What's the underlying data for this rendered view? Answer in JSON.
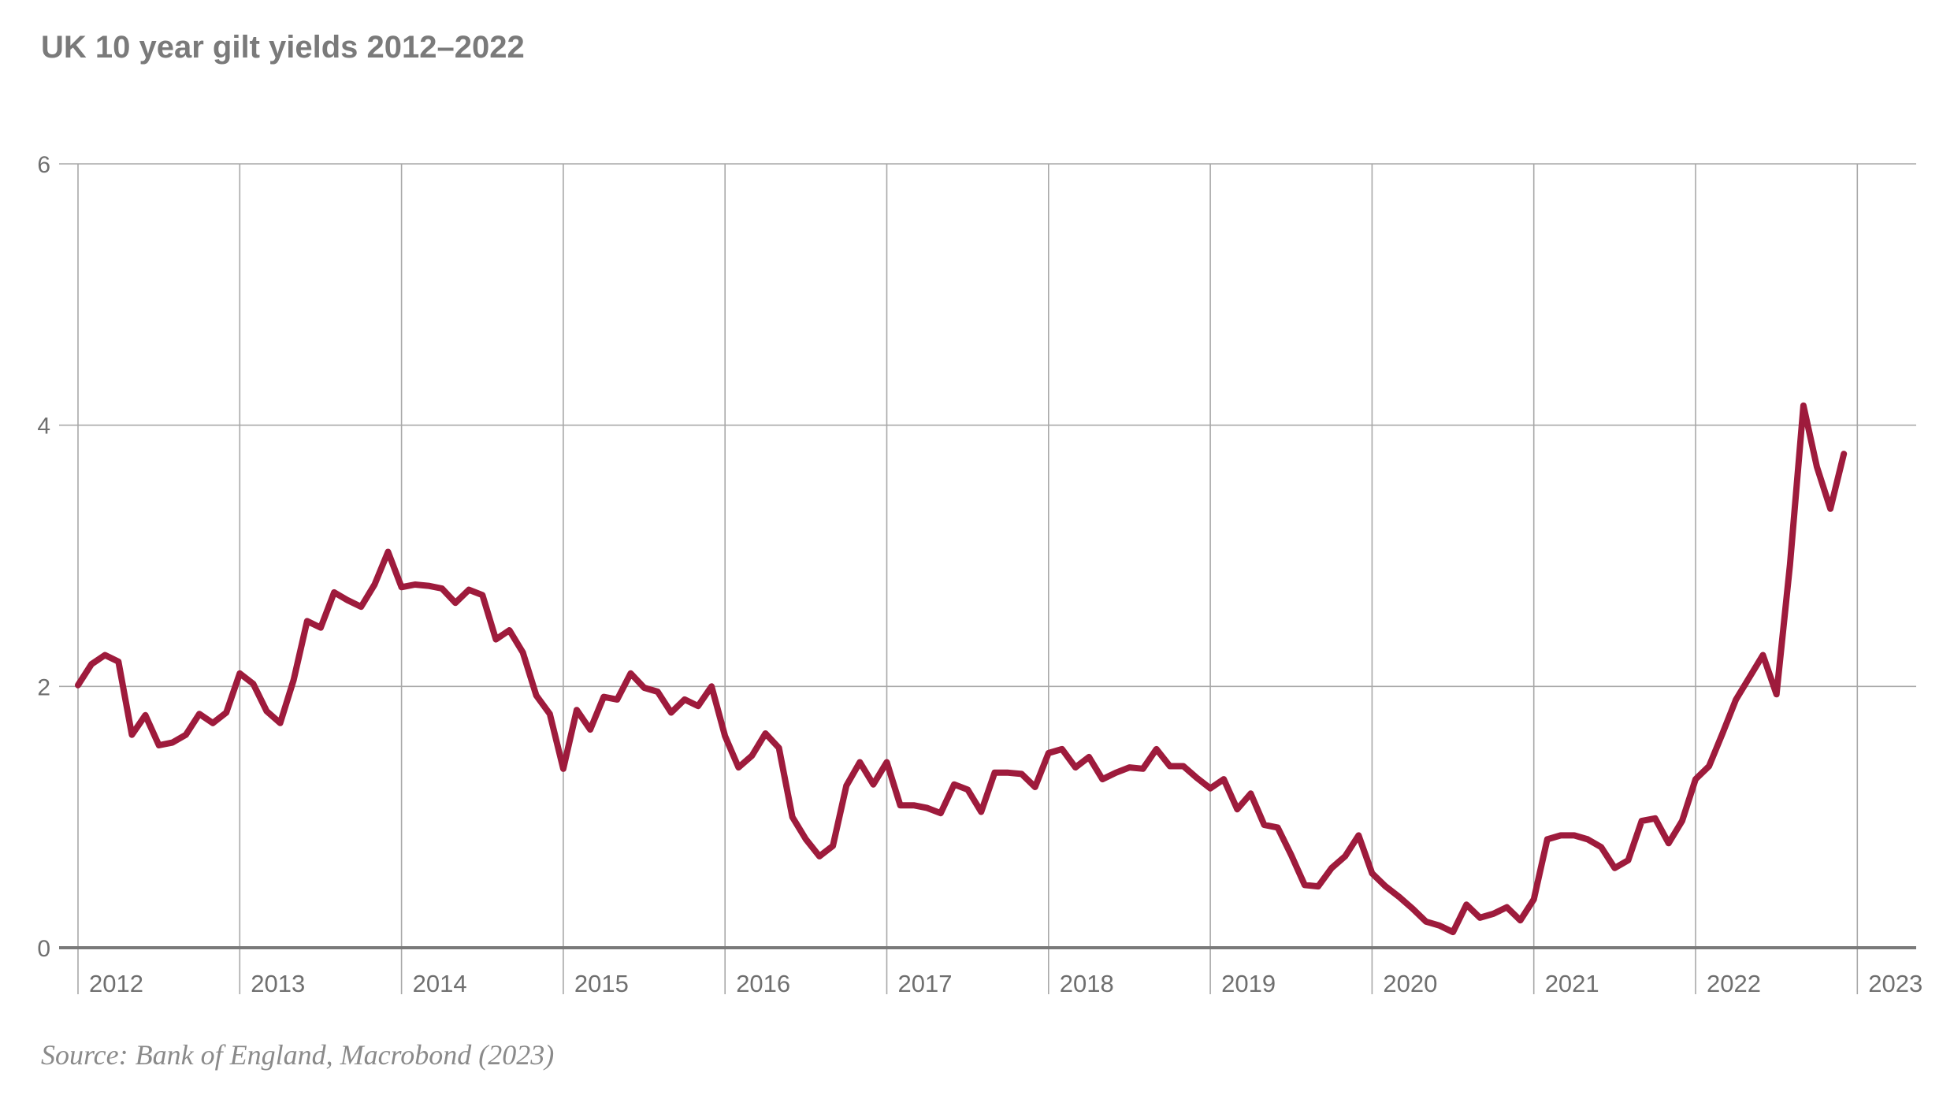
{
  "title": "UK 10 year gilt yields 2012–2022",
  "source": "Source: Bank of England, Macrobond (2023)",
  "colors": {
    "line": "#9e1b3c",
    "grid": "#a8a8a8",
    "axis": "#7a7a7a",
    "text": "#6f6f6f"
  },
  "chart_data": {
    "type": "line",
    "title": "UK 10 year gilt yields 2012–2022",
    "xlabel": "",
    "ylabel": "",
    "xlim": [
      2012,
      2023.4
    ],
    "ylim": [
      0,
      6
    ],
    "yticks": [
      0,
      2,
      4,
      6
    ],
    "ytick_labels": [
      "0",
      "2",
      "4",
      "6"
    ],
    "xticks": [
      2012,
      2013,
      2014,
      2015,
      2016,
      2017,
      2018,
      2019,
      2020,
      2021,
      2022,
      2023
    ],
    "xtick_labels": [
      "2012",
      "2013",
      "2014",
      "2015",
      "2016",
      "2017",
      "2018",
      "2019",
      "2020",
      "2021",
      "2022",
      "2023"
    ],
    "grid": true,
    "legend": "none",
    "series": [
      {
        "x_start": 2012,
        "x_step_months": 1,
        "values": [
          2.01,
          2.17,
          2.24,
          2.19,
          1.63,
          1.78,
          1.55,
          1.57,
          1.63,
          1.79,
          1.72,
          1.8,
          2.1,
          2.02,
          1.81,
          1.72,
          2.05,
          2.5,
          2.45,
          2.72,
          2.66,
          2.61,
          2.78,
          3.03,
          2.76,
          2.78,
          2.77,
          2.75,
          2.64,
          2.74,
          2.7,
          2.36,
          2.43,
          2.26,
          1.93,
          1.79,
          1.37,
          1.82,
          1.67,
          1.92,
          1.9,
          2.1,
          1.99,
          1.96,
          1.8,
          1.9,
          1.85,
          2.0,
          1.62,
          1.38,
          1.47,
          1.64,
          1.53,
          1.0,
          0.83,
          0.7,
          0.78,
          1.24,
          1.42,
          1.25,
          1.42,
          1.09,
          1.09,
          1.07,
          1.03,
          1.25,
          1.21,
          1.04,
          1.34,
          1.34,
          1.33,
          1.23,
          1.49,
          1.52,
          1.38,
          1.46,
          1.29,
          1.34,
          1.38,
          1.37,
          1.52,
          1.39,
          1.39,
          1.3,
          1.22,
          1.29,
          1.06,
          1.18,
          0.94,
          0.92,
          0.71,
          0.48,
          0.47,
          0.61,
          0.7,
          0.86,
          0.57,
          0.47,
          0.39,
          0.3,
          0.2,
          0.17,
          0.12,
          0.33,
          0.23,
          0.26,
          0.31,
          0.21,
          0.37,
          0.83,
          0.86,
          0.86,
          0.83,
          0.77,
          0.61,
          0.67,
          0.97,
          0.99,
          0.8,
          0.97,
          1.29,
          1.39,
          1.64,
          1.9,
          2.07,
          2.24,
          1.94,
          2.93,
          4.15,
          3.68,
          3.36,
          3.78
        ]
      }
    ]
  }
}
